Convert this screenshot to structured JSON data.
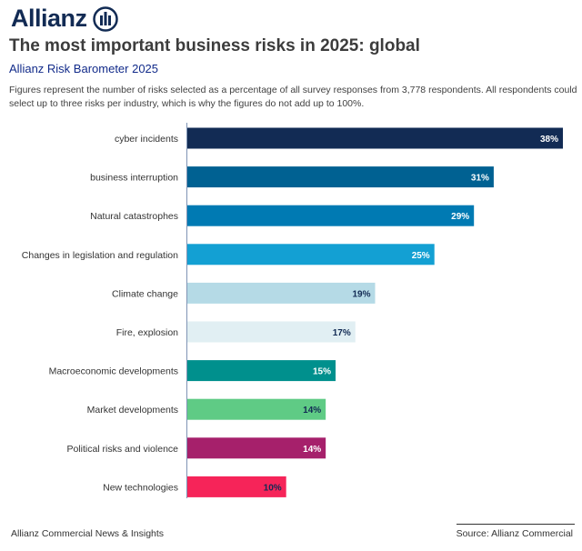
{
  "brand": {
    "name": "Allianz",
    "color": "#122B54"
  },
  "header": {
    "title": "The most important business risks in 2025: global",
    "subtitle": "Allianz Risk Barometer 2025",
    "note": "Figures represent the number of risks selected as a percentage of all survey responses from 3,778 respondents. All respondents could select up to three risks per industry, which is why the figures do not add up to 100%."
  },
  "chart_data": {
    "type": "bar",
    "orientation": "horizontal",
    "categories": [
      "cyber incidents",
      "business interruption",
      "Natural catastrophes",
      "Changes in legislation and regulation",
      "Climate change",
      "Fire, explosion",
      "Macroeconomic developments",
      "Market developments",
      "Political risks and violence",
      "New technologies"
    ],
    "values": [
      38,
      31,
      29,
      25,
      19,
      17,
      15,
      14,
      14,
      10
    ],
    "labels": [
      "38%",
      "31%",
      "29%",
      "25%",
      "19%",
      "17%",
      "15%",
      "14%",
      "14%",
      "10%"
    ],
    "colors": [
      "#122B54",
      "#006192",
      "#007AB3",
      "#13A0D3",
      "#B5DAE6",
      "#E1EFF3",
      "#00908D",
      "#5FCB85",
      "#A6206B",
      "#F62459"
    ],
    "label_colors": [
      "#ffffff",
      "#ffffff",
      "#ffffff",
      "#ffffff",
      "#122B54",
      "#122B54",
      "#ffffff",
      "#122B54",
      "#ffffff",
      "#122B54"
    ],
    "xlim": [
      0,
      38
    ],
    "grid": false
  },
  "footer": {
    "left": "Allianz Commercial News & Insights",
    "right": "Source: Allianz Commercial"
  }
}
